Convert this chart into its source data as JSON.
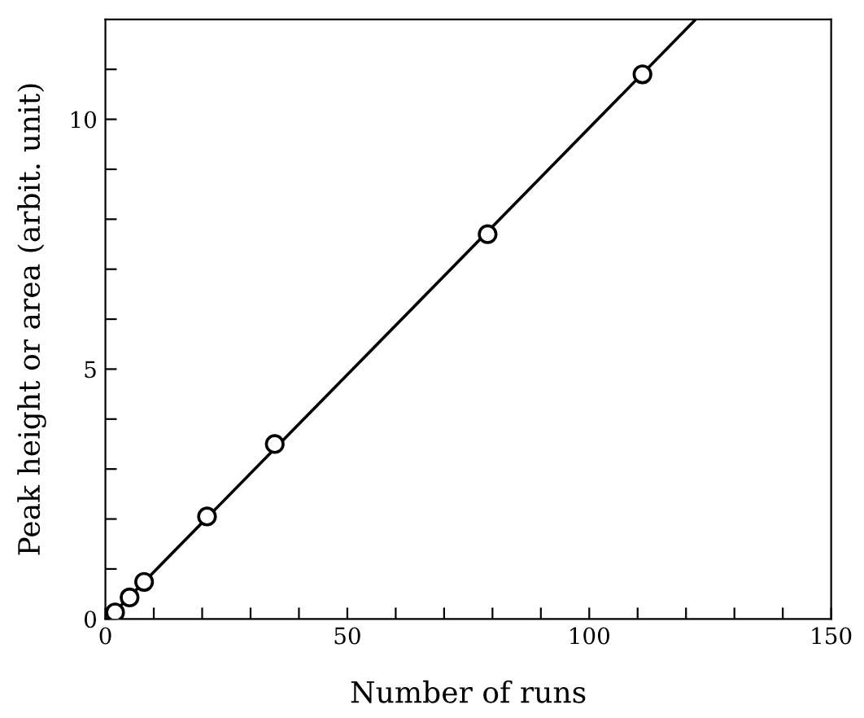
{
  "chart_data": {
    "type": "scatter",
    "xlabel": "Number of runs",
    "ylabel": "Peak height or area (arbit. unit)",
    "series": [
      {
        "color": "#000000",
        "marker": "circle",
        "x": [
          2,
          5,
          8,
          21,
          35,
          79,
          111
        ],
        "values": [
          0.13,
          0.43,
          0.74,
          2.05,
          3.5,
          7.7,
          10.9
        ]
      },
      {
        "type": "line",
        "color": "#000000",
        "marker": "none",
        "line_style": "solid",
        "x": [
          1,
          122
        ],
        "values": [
          0.05,
          12
        ]
      }
    ],
    "xlim": [
      0,
      150
    ],
    "ylim": [
      0,
      12
    ],
    "xticks": [
      0,
      {
        "value": 10,
        "label": null
      },
      {
        "value": 20,
        "label": null
      },
      {
        "value": 30,
        "label": null
      },
      {
        "value": 40,
        "label": null
      },
      50,
      {
        "value": 60,
        "label": null
      },
      {
        "value": 70,
        "label": null
      },
      {
        "value": 80,
        "label": null
      },
      {
        "value": 90,
        "label": null
      },
      100,
      {
        "value": 110,
        "label": null
      },
      {
        "value": 120,
        "label": null
      },
      {
        "value": 130,
        "label": null
      },
      {
        "value": 140,
        "label": null
      },
      150
    ],
    "yticks": [
      0,
      {
        "value": 1,
        "label": null
      },
      {
        "value": 2,
        "label": null
      },
      {
        "value": 3,
        "label": null
      },
      {
        "value": 4,
        "label": null
      },
      5,
      {
        "value": 6,
        "label": null
      },
      {
        "value": 7,
        "label": null
      },
      {
        "value": 8,
        "label": null
      },
      {
        "value": 9,
        "label": null
      },
      10,
      {
        "value": 11,
        "label": null
      }
    ],
    "grid": false,
    "legend": false
  }
}
